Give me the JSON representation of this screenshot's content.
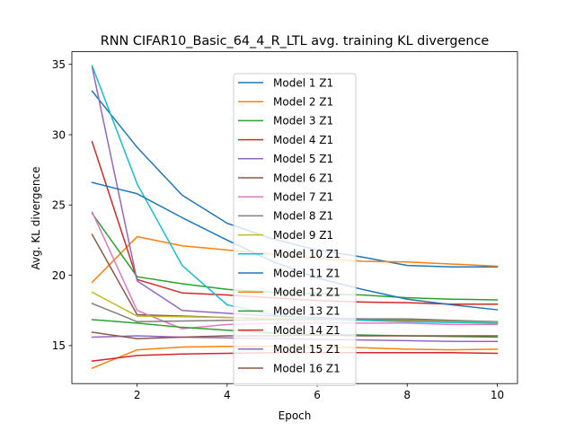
{
  "chart_data": {
    "type": "line",
    "title": "RNN CIFAR10_Basic_64_4_R_LTL avg. training KL divergence",
    "xlabel": "Epoch",
    "ylabel": "Avg. KL divergence",
    "xlim": [
      0.55,
      10.45
    ],
    "ylim": [
      12.3,
      35.9
    ],
    "xticks": [
      2,
      4,
      6,
      8,
      10
    ],
    "yticks": [
      15,
      20,
      25,
      30,
      35
    ],
    "grid": false,
    "legend_position": "upper center",
    "x": [
      1,
      2,
      3,
      4,
      5,
      6,
      7,
      8,
      9,
      10
    ],
    "series": [
      {
        "name": "Model 1 Z1",
        "color": "#1f77b4",
        "values": [
          33.1,
          29.1,
          25.7,
          23.7,
          22.6,
          21.8,
          21.3,
          20.7,
          20.6,
          20.6
        ]
      },
      {
        "name": "Model 2 Z1",
        "color": "#ff7f0e",
        "values": [
          19.5,
          22.75,
          22.1,
          21.8,
          21.5,
          21.2,
          21.0,
          20.95,
          20.8,
          20.65
        ]
      },
      {
        "name": "Model 3 Z1",
        "color": "#2ca02c",
        "values": [
          24.4,
          19.9,
          19.4,
          19.0,
          18.8,
          18.7,
          18.6,
          18.4,
          18.3,
          18.25
        ]
      },
      {
        "name": "Model 4 Z1",
        "color": "#d62728",
        "values": [
          29.5,
          19.7,
          18.75,
          18.6,
          18.4,
          18.2,
          18.1,
          18.05,
          17.95,
          17.95
        ]
      },
      {
        "name": "Model 5 Z1",
        "color": "#9467bd",
        "values": [
          34.8,
          19.6,
          17.5,
          17.3,
          17.1,
          17.0,
          16.9,
          16.8,
          16.7,
          16.65
        ]
      },
      {
        "name": "Model 6 Z1",
        "color": "#8c564b",
        "values": [
          22.9,
          17.2,
          17.1,
          17.0,
          16.9,
          16.9,
          16.85,
          16.8,
          16.75,
          16.7
        ]
      },
      {
        "name": "Model 7 Z1",
        "color": "#e377c2",
        "values": [
          24.5,
          17.5,
          16.2,
          16.5,
          16.6,
          16.6,
          16.6,
          16.6,
          16.5,
          16.5
        ]
      },
      {
        "name": "Model 8 Z1",
        "color": "#7f7f7f",
        "values": [
          18.0,
          16.7,
          16.75,
          16.8,
          16.85,
          16.85,
          16.9,
          16.9,
          16.8,
          16.7
        ]
      },
      {
        "name": "Model 9 Z1",
        "color": "#bcbd22",
        "values": [
          18.8,
          17.1,
          17.05,
          17.0,
          16.95,
          16.9,
          16.8,
          16.75,
          16.7,
          16.65
        ]
      },
      {
        "name": "Model 10 Z1",
        "color": "#17becf",
        "values": [
          34.9,
          26.5,
          20.7,
          17.9,
          17.2,
          16.9,
          16.8,
          16.7,
          16.65,
          16.6
        ]
      },
      {
        "name": "Model 11 Z1",
        "color": "#1f77b4",
        "values": [
          26.6,
          25.8,
          24.1,
          22.5,
          21.0,
          19.8,
          19.0,
          18.3,
          17.9,
          17.55
        ]
      },
      {
        "name": "Model 12 Z1",
        "color": "#ff7f0e",
        "values": [
          13.4,
          14.7,
          14.9,
          14.95,
          14.95,
          14.9,
          14.85,
          14.75,
          14.7,
          14.75
        ]
      },
      {
        "name": "Model 13 Z1",
        "color": "#2ca02c",
        "values": [
          16.85,
          16.6,
          16.3,
          16.1,
          15.9,
          15.8,
          15.75,
          15.7,
          15.65,
          15.6
        ]
      },
      {
        "name": "Model 14 Z1",
        "color": "#d62728",
        "values": [
          13.9,
          14.3,
          14.4,
          14.45,
          14.5,
          14.5,
          14.5,
          14.5,
          14.5,
          14.45
        ]
      },
      {
        "name": "Model 15 Z1",
        "color": "#9467bd",
        "values": [
          15.6,
          15.7,
          15.6,
          15.55,
          15.5,
          15.45,
          15.4,
          15.35,
          15.3,
          15.3
        ]
      },
      {
        "name": "Model 16 Z1",
        "color": "#8c564b",
        "values": [
          15.95,
          15.5,
          15.6,
          15.7,
          15.7,
          15.75,
          15.7,
          15.7,
          15.7,
          15.7
        ]
      }
    ]
  }
}
